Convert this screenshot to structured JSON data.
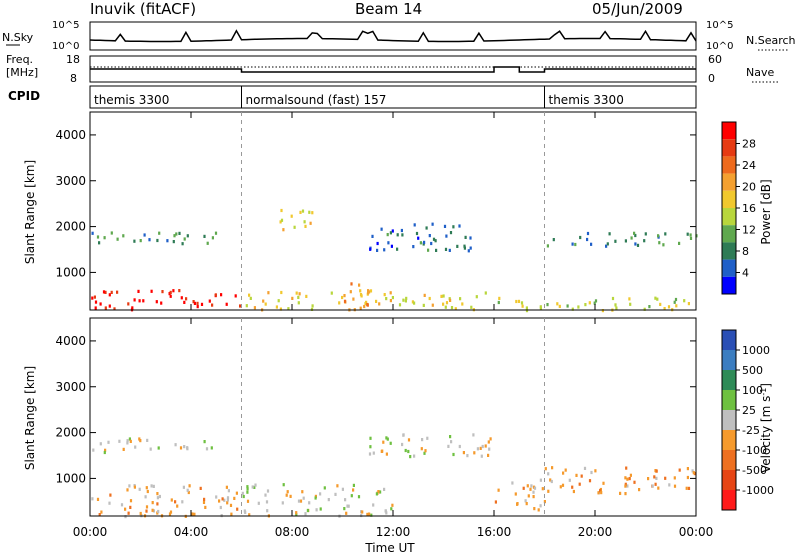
{
  "header": {
    "station": "Inuvik (fitACF)",
    "beam": "Beam 14",
    "date": "05/Jun/2009"
  },
  "noise_panel": {
    "left_label": "N.Sky",
    "right_label": "N.Search",
    "left_ticks": [
      "10^5",
      "10^0"
    ],
    "right_ticks": [
      "10^5",
      "10^0"
    ]
  },
  "freq_panel": {
    "left_label_1": "Freq.",
    "left_label_2": "[MHz]",
    "left_ticks": [
      "18",
      "8"
    ],
    "right_label": "Nave",
    "right_ticks": [
      "60",
      "0"
    ]
  },
  "cpid_panel": {
    "label": "CPID",
    "segments": [
      {
        "start_h": 0,
        "end_h": 6,
        "text": "themis 3300"
      },
      {
        "start_h": 6,
        "end_h": 18,
        "text": "normalsound (fast) 157"
      },
      {
        "start_h": 18,
        "end_h": 24,
        "text": "themis 3300"
      }
    ]
  },
  "x_axis": {
    "label": "Time UT",
    "ticks": [
      "00:00",
      "04:00",
      "08:00",
      "12:00",
      "16:00",
      "20:00",
      "00:00"
    ],
    "range_h": [
      0,
      24
    ]
  },
  "power_panel": {
    "ylabel": "Slant Range [km]",
    "yticks": [
      "4000",
      "3000",
      "2000",
      "1000"
    ],
    "cbar_label": "Power [dB]",
    "cbar_ticks": [
      "28",
      "24",
      "20",
      "16",
      "12",
      "8",
      "4"
    ],
    "colors": [
      "#0000ff",
      "#1f5fc8",
      "#2e7b55",
      "#5fa84e",
      "#b8d63c",
      "#f1c82e",
      "#f4a030",
      "#ee6a1d",
      "#e63a12",
      "#ff0000"
    ]
  },
  "velocity_panel": {
    "ylabel": "Slant Range [km]",
    "yticks": [
      "4000",
      "3000",
      "2000",
      "1000"
    ],
    "cbar_label": "Velocity [m s",
    "cbar_label_sup": "-1",
    "cbar_label_end": "]",
    "cbar_ticks": [
      "1000",
      "500",
      "100",
      "25",
      "-25",
      "-100",
      "-500",
      "-1000"
    ],
    "colors": [
      "#2a4fb5",
      "#3b7dc0",
      "#2e8b57",
      "#6ec040",
      "#bfbfbf",
      "#f59a2c",
      "#ee7020",
      "#e64515",
      "#ff1a1a"
    ]
  },
  "chart_data": {
    "type": "heatmap",
    "title": "Inuvik (fitACF)",
    "x": {
      "label": "Time UT",
      "range": [
        0,
        24
      ],
      "unit": "hours"
    },
    "y": {
      "label": "Slant Range [km]",
      "range": [
        180,
        4500
      ],
      "unit": "km"
    },
    "series": [
      {
        "name": "Power [dB]",
        "range": [
          0,
          30
        ],
        "regions": [
          {
            "t": [
              0,
              6
            ],
            "r": [
              200,
              650
            ],
            "v": 28
          },
          {
            "t": [
              6,
              16
            ],
            "r": [
              200,
              600
            ],
            "v": 16
          },
          {
            "t": [
              16,
              24
            ],
            "r": [
              200,
              500
            ],
            "v": 14
          },
          {
            "t": [
              0,
              5
            ],
            "r": [
              1600,
              1900
            ],
            "v": 8
          },
          {
            "t": [
              7.5,
              9
            ],
            "r": [
              1900,
              2400
            ],
            "v": 16
          },
          {
            "t": [
              11,
              15.5
            ],
            "r": [
              1500,
              2100
            ],
            "v": 6
          },
          {
            "t": [
              18,
              24
            ],
            "r": [
              1600,
              1900
            ],
            "v": 8
          },
          {
            "t": [
              10,
              11.5
            ],
            "r": [
              300,
              800
            ],
            "v": 20
          }
        ]
      },
      {
        "name": "Velocity [m s-1]",
        "range": [
          -1000,
          1000
        ],
        "regions": [
          {
            "t": [
              0,
              6
            ],
            "r": [
              200,
              900
            ],
            "v": -200
          },
          {
            "t": [
              6,
              12
            ],
            "r": [
              200,
              900
            ],
            "v": 10
          },
          {
            "t": [
              16,
              18
            ],
            "r": [
              300,
              1000
            ],
            "v": -200
          },
          {
            "t": [
              0,
              5
            ],
            "r": [
              1600,
              1900
            ],
            "v": 0
          },
          {
            "t": [
              11,
              16
            ],
            "r": [
              1500,
              2000
            ],
            "v": 0
          },
          {
            "t": [
              18,
              24
            ],
            "r": [
              700,
              1300
            ],
            "v": -300
          }
        ]
      }
    ]
  }
}
